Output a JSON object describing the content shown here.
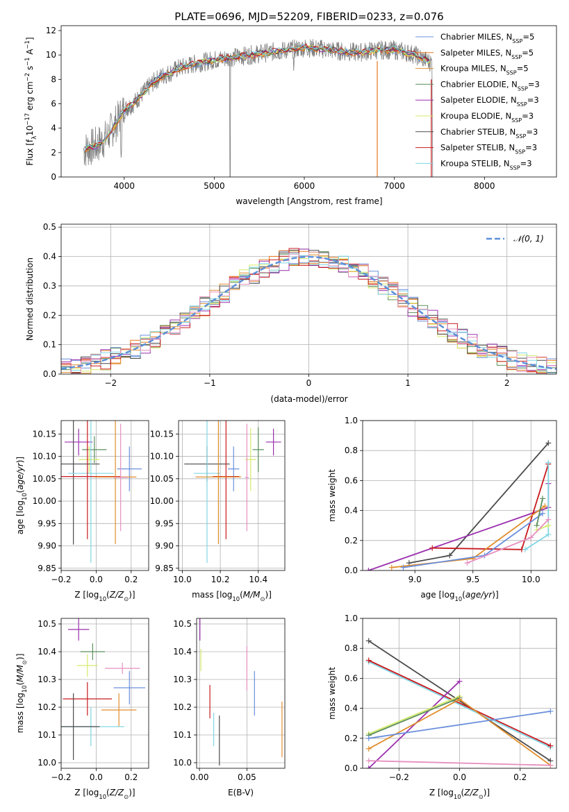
{
  "colors": {
    "chabrier_miles": "#6a8fdc",
    "salpeter_miles": "#e8771c",
    "kroupa_miles": "#e08e2c",
    "chabrier_elodie": "#5b8f5b",
    "salpeter_elodie": "#9b2fae",
    "kroupa_elodie": "#d6ea6b",
    "chabrier_stelib": "#4a4a4a",
    "salpeter_stelib": "#c8191e",
    "kroupa_stelib": "#7fd6e3",
    "extra_pink": "#e58fbf",
    "normal_curve": "#5a8fd8",
    "spectrum_data": "#7f7f7f"
  },
  "chart_data": [
    {
      "type": "line",
      "title": "PLATE=0696, MJD=52209, FIBERID=0233, z=0.076",
      "xlabel": "wavelength [Angstrom, rest frame]",
      "ylabel": "Flux [f_λ10^-17 erg cm^-2 s^-1 A^-1]",
      "xlim": [
        3300,
        8800
      ],
      "ylim": [
        0,
        12.4
      ],
      "xticks": [
        4000,
        5000,
        6000,
        7000,
        8000
      ],
      "yticks": [
        0,
        2,
        4,
        6,
        8,
        10,
        12
      ],
      "legend_position": "upper right",
      "legend": [
        {
          "base": "Chabrier MILES, N",
          "sub": "SSP",
          "tail": "=5"
        },
        {
          "base": "Salpeter MILES, N",
          "sub": "SSP",
          "tail": "=5"
        },
        {
          "base": "Kroupa MILES, N",
          "sub": "SSP",
          "tail": "=5"
        },
        {
          "base": "Chabrier ELODIE, N",
          "sub": "SSP",
          "tail": "=3"
        },
        {
          "base": "Salpeter ELODIE, N",
          "sub": "SSP",
          "tail": "=3"
        },
        {
          "base": "Kroupa ELODIE, N",
          "sub": "SSP",
          "tail": "=3"
        },
        {
          "base": "Chabrier STELIB, N",
          "sub": "SSP",
          "tail": "=3"
        },
        {
          "base": "Salpeter STELIB, N",
          "sub": "SSP",
          "tail": "=3"
        },
        {
          "base": "Kroupa STELIB, N",
          "sub": "SSP",
          "tail": "=3"
        }
      ],
      "model_curve": {
        "x": [
          3550,
          3700,
          3800,
          3900,
          4000,
          4100,
          4200,
          4300,
          4400,
          4500,
          4600,
          4800,
          5000,
          5200,
          5400,
          5600,
          5800,
          6000,
          6200,
          6400,
          6600,
          6800,
          7000,
          7200,
          7400
        ],
        "y": [
          2.2,
          2.6,
          3.2,
          4.3,
          5.5,
          6.0,
          6.8,
          7.6,
          8.2,
          8.5,
          8.9,
          9.3,
          9.6,
          9.8,
          10.0,
          10.2,
          10.4,
          10.6,
          10.5,
          10.3,
          10.2,
          10.4,
          10.4,
          10.1,
          9.4
        ]
      }
    },
    {
      "type": "bar",
      "xlabel": "(data-model)/error",
      "ylabel": "Normed distribution",
      "xlim": [
        -2.5,
        2.5
      ],
      "ylim": [
        0,
        0.51
      ],
      "xticks": [
        -2,
        -1,
        0,
        1,
        2
      ],
      "yticks": [
        0.0,
        0.1,
        0.2,
        0.3,
        0.4,
        0.5
      ],
      "legend": [
        "N(0,1)"
      ],
      "legend_position": "upper right",
      "bin_width": 0.1,
      "bin_start": -2.5
    },
    {
      "type": "scatter",
      "xlabel": "Z [log10(Z/Z☉)]",
      "ylabel": "age  [log10(age/yr)]",
      "xlim": [
        -0.2,
        0.3
      ],
      "ylim": [
        9.845,
        10.18
      ],
      "xticks": [
        -0.2,
        0.0,
        0.2
      ],
      "yticks": [
        9.85,
        9.9,
        9.95,
        10.0,
        10.05,
        10.1,
        10.15
      ],
      "points": [
        {
          "series": "salpeter_elodie",
          "x": -0.1,
          "y": 10.132,
          "xerr": 0.08,
          "yerr": 0.03
        },
        {
          "series": "chabrier_elodie",
          "x": -0.01,
          "y": 10.115,
          "xerr": 0.07,
          "yerr": 0.03
        },
        {
          "series": "kroupa_elodie",
          "x": -0.04,
          "y": 10.093,
          "xerr": 0.06,
          "yerr": 0.03
        },
        {
          "series": "chabrier_stelib",
          "x": -0.13,
          "y": 10.083,
          "xerr": 0.15,
          "yerr": 0.18
        },
        {
          "series": "chabrier_miles",
          "x": 0.19,
          "y": 10.072,
          "xerr": 0.07,
          "yerr": 0.05
        },
        {
          "series": "kroupa_stelib",
          "x": -0.03,
          "y": 10.062,
          "xerr": 0.13,
          "yerr": 0.2
        },
        {
          "series": "salpeter_stelib",
          "x": -0.05,
          "y": 10.055,
          "xerr": 0.19,
          "yerr": 0.14
        },
        {
          "series": "kroupa_miles",
          "x": 0.11,
          "y": 10.054,
          "xerr": 0.12,
          "yerr": 0.15
        },
        {
          "series": "extra_pink",
          "x": 0.14,
          "y": 10.053,
          "xerr": 0.04,
          "yerr": 0.12
        }
      ]
    },
    {
      "type": "scatter",
      "xlabel": "mass [log10(M/M☉)]",
      "ylabel": "",
      "xlim": [
        9.98,
        10.54
      ],
      "ylim": [
        9.845,
        10.18
      ],
      "xticks": [
        10.0,
        10.2,
        10.4
      ],
      "yticks": [
        9.85,
        9.9,
        9.95,
        10.0,
        10.05,
        10.1,
        10.15
      ],
      "points": [
        {
          "series": "salpeter_elodie",
          "x": 10.48,
          "y": 10.132,
          "xerr": 0.04,
          "yerr": 0.03
        },
        {
          "series": "chabrier_elodie",
          "x": 10.4,
          "y": 10.115,
          "xerr": 0.03,
          "yerr": 0.05
        },
        {
          "series": "kroupa_elodie",
          "x": 10.36,
          "y": 10.093,
          "xerr": 0.03,
          "yerr": 0.07
        },
        {
          "series": "chabrier_stelib",
          "x": 10.13,
          "y": 10.083,
          "xerr": 0.12,
          "yerr": 0.04
        },
        {
          "series": "chabrier_miles",
          "x": 10.27,
          "y": 10.072,
          "xerr": 0.03,
          "yerr": 0.05
        },
        {
          "series": "kroupa_stelib",
          "x": 10.13,
          "y": 10.062,
          "xerr": 0.07,
          "yerr": 0.2
        },
        {
          "series": "salpeter_stelib",
          "x": 10.23,
          "y": 10.055,
          "xerr": 0.07,
          "yerr": 0.14
        },
        {
          "series": "kroupa_miles",
          "x": 10.19,
          "y": 10.054,
          "xerr": 0.12,
          "yerr": 0.15
        },
        {
          "series": "extra_pink",
          "x": 10.34,
          "y": 10.053,
          "xerr": 0.01,
          "yerr": 0.12
        }
      ]
    },
    {
      "type": "line",
      "xlabel": "age  [log10(age/yr)]",
      "ylabel": "mass weight",
      "xlim": [
        8.55,
        10.22
      ],
      "ylim": [
        0,
        1.0
      ],
      "xticks": [
        9.0,
        9.5,
        10.0
      ],
      "yticks": [
        0.0,
        0.2,
        0.4,
        0.6,
        0.8,
        1.0
      ],
      "series": [
        {
          "series": "chabrier_stelib",
          "x": [
            8.95,
            9.3,
            10.15
          ],
          "y": [
            0.05,
            0.1,
            0.85
          ]
        },
        {
          "series": "salpeter_elodie",
          "x": [
            8.6,
            10.15,
            10.15
          ],
          "y": [
            0.0,
            0.42,
            0.58
          ]
        },
        {
          "series": "salpeter_stelib",
          "x": [
            9.15,
            9.92,
            10.15
          ],
          "y": [
            0.15,
            0.14,
            0.71
          ]
        },
        {
          "series": "kroupa_miles",
          "x": [
            8.8,
            9.5,
            10.12
          ],
          "y": [
            0.02,
            0.08,
            0.43
          ]
        },
        {
          "series": "chabrier_miles",
          "x": [
            8.9,
            9.6,
            10.1
          ],
          "y": [
            0.02,
            0.1,
            0.38
          ]
        },
        {
          "series": "kroupa_stelib",
          "x": [
            9.95,
            10.15,
            10.15
          ],
          "y": [
            0.14,
            0.24,
            0.72
          ]
        },
        {
          "series": "chabrier_elodie",
          "x": [
            10.05,
            10.1
          ],
          "y": [
            0.3,
            0.48
          ]
        },
        {
          "series": "kroupa_elodie",
          "x": [
            10.05,
            10.15
          ],
          "y": [
            0.27,
            0.3
          ]
        },
        {
          "series": "extra_pink",
          "x": [
            9.45,
            10.0,
            10.15
          ],
          "y": [
            0.05,
            0.22,
            0.34
          ]
        }
      ]
    },
    {
      "type": "scatter",
      "xlabel": "Z [log10(Z/Z☉)]",
      "ylabel": "mass [log10(M/M☉)]",
      "xlim": [
        -0.2,
        0.3
      ],
      "ylim": [
        9.98,
        10.52
      ],
      "xticks": [
        -0.2,
        0.0,
        0.2
      ],
      "yticks": [
        10.0,
        10.1,
        10.2,
        10.3,
        10.4,
        10.5
      ],
      "points": [
        {
          "series": "salpeter_elodie",
          "x": -0.1,
          "y": 10.48,
          "xerr": 0.06,
          "yerr": 0.04
        },
        {
          "series": "chabrier_elodie",
          "x": -0.02,
          "y": 10.4,
          "xerr": 0.07,
          "yerr": 0.03
        },
        {
          "series": "kroupa_elodie",
          "x": -0.05,
          "y": 10.35,
          "xerr": 0.06,
          "yerr": 0.04
        },
        {
          "series": "extra_pink",
          "x": 0.15,
          "y": 10.34,
          "xerr": 0.1,
          "yerr": 0.02
        },
        {
          "series": "chabrier_miles",
          "x": 0.19,
          "y": 10.27,
          "xerr": 0.09,
          "yerr": 0.06
        },
        {
          "series": "salpeter_stelib",
          "x": -0.05,
          "y": 10.23,
          "xerr": 0.14,
          "yerr": 0.06
        },
        {
          "series": "kroupa_miles",
          "x": 0.13,
          "y": 10.19,
          "xerr": 0.1,
          "yerr": 0.06
        },
        {
          "series": "kroupa_stelib",
          "x": -0.03,
          "y": 10.13,
          "xerr": 0.19,
          "yerr": 0.07
        },
        {
          "series": "chabrier_stelib",
          "x": -0.13,
          "y": 10.13,
          "xerr": 0.15,
          "yerr": 0.12
        }
      ]
    },
    {
      "type": "scatter",
      "xlabel": "E(B-V)",
      "ylabel": "",
      "xlim": [
        -0.003,
        0.09
      ],
      "ylim": [
        9.98,
        10.52
      ],
      "xticks": [
        0.0,
        0.05
      ],
      "yticks": [
        10.0,
        10.1,
        10.2,
        10.3,
        10.4,
        10.5
      ],
      "points": [
        {
          "series": "salpeter_elodie",
          "x": 0.0005,
          "y": 10.48,
          "yerr": 0.04
        },
        {
          "series": "kroupa_elodie",
          "x": 0.0015,
          "y": 10.37,
          "yerr": 0.04
        },
        {
          "series": "extra_pink",
          "x": 0.05,
          "y": 10.34,
          "yerr": 0.08
        },
        {
          "series": "chabrier_miles",
          "x": 0.058,
          "y": 10.25,
          "yerr": 0.08
        },
        {
          "series": "salpeter_stelib",
          "x": 0.011,
          "y": 10.22,
          "yerr": 0.06
        },
        {
          "series": "kroupa_miles",
          "x": 0.087,
          "y": 10.12,
          "yerr": 0.1
        },
        {
          "series": "kroupa_stelib",
          "x": 0.015,
          "y": 10.12,
          "yerr": 0.06
        },
        {
          "series": "chabrier_stelib",
          "x": 0.021,
          "y": 10.08,
          "yerr": 0.09
        }
      ]
    },
    {
      "type": "line",
      "xlabel": "Z [log10(Z/Z☉)]",
      "ylabel": "mass weight",
      "xlim": [
        -0.32,
        0.32
      ],
      "ylim": [
        0,
        1.0
      ],
      "xticks": [
        -0.2,
        0.0,
        0.2
      ],
      "yticks": [
        0.0,
        0.2,
        0.4,
        0.6,
        0.8,
        1.0
      ],
      "series": [
        {
          "series": "chabrier_stelib",
          "x": [
            -0.3,
            0.3
          ],
          "y": [
            0.85,
            0.05
          ]
        },
        {
          "series": "kroupa_stelib",
          "x": [
            -0.3,
            0.3
          ],
          "y": [
            0.71,
            0.14
          ]
        },
        {
          "series": "salpeter_stelib",
          "x": [
            -0.3,
            0.3
          ],
          "y": [
            0.72,
            0.15
          ]
        },
        {
          "series": "salpeter_elodie",
          "x": [
            -0.3,
            0.0
          ],
          "y": [
            0.0,
            0.58
          ]
        },
        {
          "series": "kroupa_elodie",
          "x": [
            -0.3,
            0.0
          ],
          "y": [
            0.23,
            0.48
          ]
        },
        {
          "series": "chabrier_elodie",
          "x": [
            -0.3,
            0.0
          ],
          "y": [
            0.22,
            0.47
          ]
        },
        {
          "series": "kroupa_miles",
          "x": [
            -0.3,
            0.0,
            0.3
          ],
          "y": [
            0.13,
            0.46,
            0.02
          ]
        },
        {
          "series": "chabrier_miles",
          "x": [
            -0.3,
            0.3
          ],
          "y": [
            0.2,
            0.38
          ]
        },
        {
          "series": "extra_pink",
          "x": [
            -0.3,
            0.3
          ],
          "y": [
            0.05,
            0.02
          ]
        }
      ]
    }
  ]
}
